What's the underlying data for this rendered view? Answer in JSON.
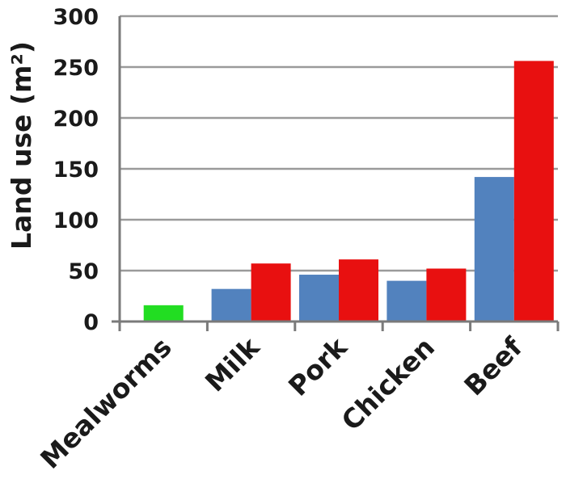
{
  "chart_data": {
    "type": "bar",
    "title": "",
    "xlabel": "",
    "ylabel": "Land use (m²)",
    "ylim": [
      0,
      300
    ],
    "yticks": [
      0,
      50,
      100,
      150,
      200,
      250,
      300
    ],
    "ytick_labels": [
      "0",
      "50",
      "100",
      "150",
      "200",
      "250",
      "300"
    ],
    "grid": true,
    "legend": "none",
    "categories": [
      "Mealworms",
      "Milk",
      "Pork",
      "Chicken",
      "Beef"
    ],
    "series": [
      {
        "color": "#22dd22",
        "values": [
          16,
          null,
          null,
          null,
          null
        ]
      },
      {
        "color": "#5282be",
        "values": [
          null,
          32,
          46,
          40,
          142
        ]
      },
      {
        "color": "#e81010",
        "values": [
          null,
          57,
          61,
          52,
          256
        ]
      }
    ]
  }
}
